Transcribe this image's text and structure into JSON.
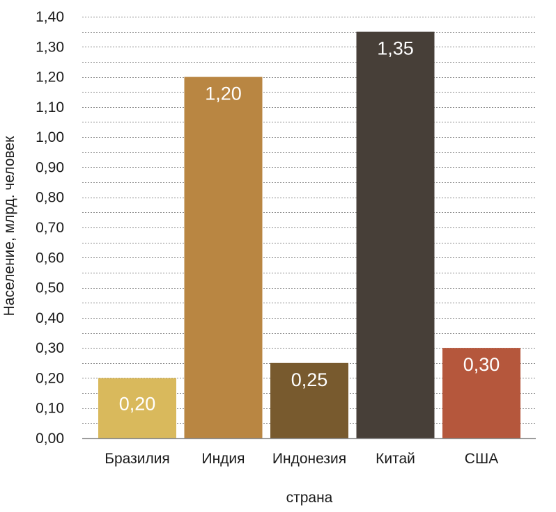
{
  "chart_data": {
    "type": "bar",
    "categories": [
      "Бразилия",
      "Индия",
      "Индонезия",
      "Китай",
      "США"
    ],
    "values": [
      0.2,
      1.2,
      0.25,
      1.35,
      0.3
    ],
    "data_labels": [
      "0,20",
      "1,20",
      "0,25",
      "1,35",
      "0,30"
    ],
    "colors": [
      "#d9b95c",
      "#b98642",
      "#785a2e",
      "#473f38",
      "#b5573c"
    ],
    "xlabel": "страна",
    "ylabel": "Население, млрд. человек",
    "ylim": [
      0,
      1.4
    ],
    "y_ticks": [
      0.0,
      0.1,
      0.2,
      0.3,
      0.4,
      0.5,
      0.6,
      0.7,
      0.8,
      0.9,
      1.0,
      1.1,
      1.2,
      1.3,
      1.4
    ],
    "y_tick_labels": [
      "0,00",
      "0,10",
      "0,20",
      "0,30",
      "0,40",
      "0,50",
      "0,60",
      "0,70",
      "0,80",
      "0,90",
      "1,00",
      "1,10",
      "1,20",
      "1,30",
      "1,40"
    ],
    "grid": true,
    "legend": "none"
  }
}
